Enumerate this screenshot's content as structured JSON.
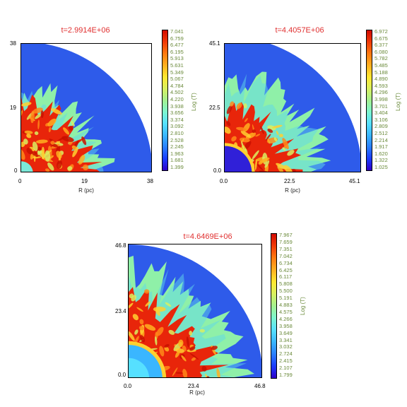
{
  "colormap": [
    "#2d00c8",
    "#1a3cff",
    "#2a7fff",
    "#3ab6ff",
    "#56e0ff",
    "#7cf5d0",
    "#a4f090",
    "#d8f060",
    "#ffe830",
    "#ffb020",
    "#ff7a10",
    "#f03a08",
    "#d20a00"
  ],
  "background_color": "#2e5bea",
  "chart_data": [
    {
      "type": "heatmap",
      "title": "t=2.9914E+06",
      "xlabel": "R (pc)",
      "ylabel": "",
      "xlim": [
        0,
        38
      ],
      "ylim": [
        0,
        38
      ],
      "x_ticks": [
        "0",
        "19",
        "38"
      ],
      "y_ticks": [
        "0",
        "19",
        "38"
      ],
      "colorbar_label": "Log (T)",
      "colorbar_values": [
        "7.041",
        "6.759",
        "6.477",
        "6.195",
        "5.913",
        "5.631",
        "5.349",
        "5.067",
        "4.784",
        "4.502",
        "4.220",
        "3.938",
        "3.656",
        "3.374",
        "3.092",
        "2.810",
        "2.528",
        "2.245",
        "1.963",
        "1.681",
        "1.399"
      ],
      "outer_region": "quarter circle, Log(T) ~2.3 (blue)",
      "inner_hot_region_radius_pc": 20
    },
    {
      "type": "heatmap",
      "title": "t=4.4057E+06",
      "xlabel": "R (pc)",
      "ylabel": "",
      "xlim": [
        0,
        45.1
      ],
      "ylim": [
        0,
        45.1
      ],
      "x_ticks": [
        "0.0",
        "22.5",
        "45.1"
      ],
      "y_ticks": [
        "0.0",
        "22.5",
        "45.1"
      ],
      "colorbar_label": "Log (T)",
      "colorbar_values": [
        "6.972",
        "6.675",
        "6.377",
        "6.080",
        "5.782",
        "5.485",
        "5.188",
        "4.890",
        "4.593",
        "4.296",
        "3.998",
        "3.701",
        "3.404",
        "3.106",
        "2.809",
        "2.512",
        "2.214",
        "1.917",
        "1.620",
        "1.322",
        "1.025"
      ],
      "outer_region": "quarter circle, Log(T) ~2.4 (blue)",
      "inner_hot_region_radius_pc": 28
    },
    {
      "type": "heatmap",
      "title": "t=4.6469E+06",
      "xlabel": "R (pc)",
      "ylabel": "",
      "xlim": [
        0,
        46.8
      ],
      "ylim": [
        0,
        46.8
      ],
      "x_ticks": [
        "0.0",
        "23.4",
        "46.8"
      ],
      "y_ticks": [
        "0.0",
        "23.4",
        "46.8"
      ],
      "colorbar_label": "Log (T)",
      "colorbar_values": [
        "7.967",
        "7.659",
        "7.351",
        "7.042",
        "6.734",
        "6.425",
        "6.117",
        "5.808",
        "5.500",
        "5.191",
        "4.883",
        "4.575",
        "4.266",
        "3.958",
        "3.649",
        "3.341",
        "3.032",
        "2.724",
        "2.415",
        "2.107",
        "1.799"
      ],
      "outer_region": "quarter circle, Log(T) ~2.2 (blue/dark blue)",
      "inner_hot_region_radius_pc": 33
    }
  ]
}
